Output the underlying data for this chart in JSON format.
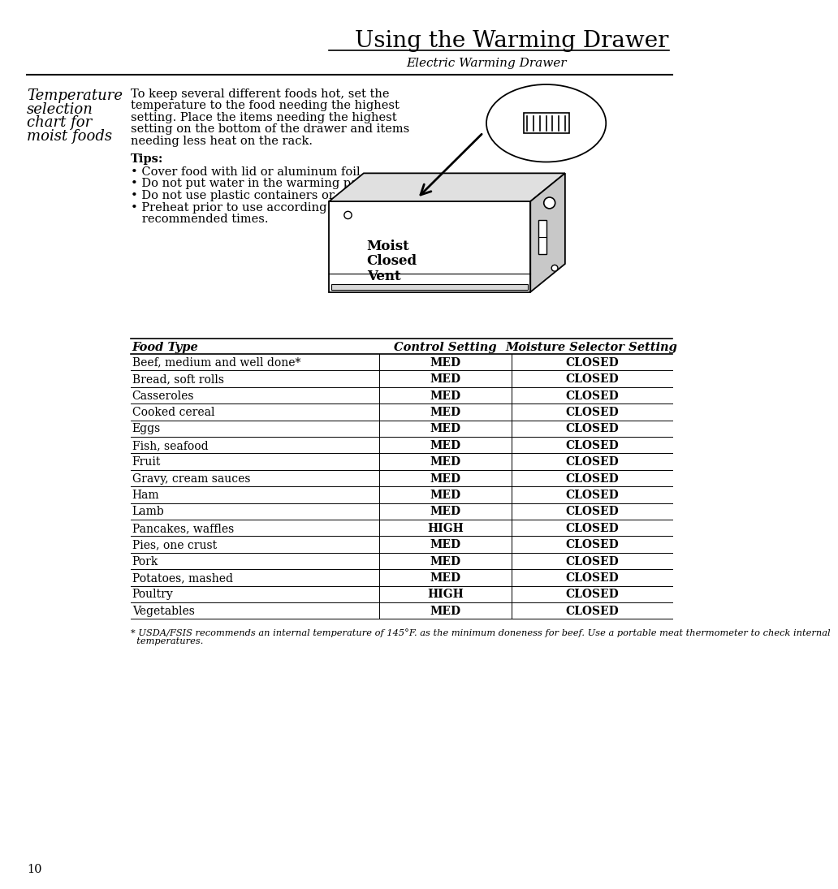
{
  "page_title": "Using the Warming Drawer",
  "page_subtitle": "Electric Warming Drawer",
  "page_number": "10",
  "section_title_lines": [
    "Temperature",
    "selection",
    "chart for",
    "moist foods"
  ],
  "intro_text_lines": [
    "To keep several different foods hot, set the",
    "temperature to the food needing the highest",
    "setting. Place the items needing the highest",
    "setting on the bottom of the drawer and items",
    "needing less heat on the rack."
  ],
  "tips_title": "Tips:",
  "tips": [
    "Cover food with lid or aluminum foil.",
    "Do not put water in the warming pan.",
    "Do not use plastic containers or plastic wrap.",
    "Preheat prior to use according to",
    "   recommended times."
  ],
  "tips_bullets": [
    true,
    true,
    true,
    true,
    false
  ],
  "table_headers": [
    "Food Type",
    "Control Setting",
    "Moisture Selector Setting"
  ],
  "table_data": [
    [
      "Beef, medium and well done*",
      "MED",
      "CLOSED"
    ],
    [
      "Bread, soft rolls",
      "MED",
      "CLOSED"
    ],
    [
      "Casseroles",
      "MED",
      "CLOSED"
    ],
    [
      "Cooked cereal",
      "MED",
      "CLOSED"
    ],
    [
      "Eggs",
      "MED",
      "CLOSED"
    ],
    [
      "Fish, seafood",
      "MED",
      "CLOSED"
    ],
    [
      "Fruit",
      "MED",
      "CLOSED"
    ],
    [
      "Gravy, cream sauces",
      "MED",
      "CLOSED"
    ],
    [
      "Ham",
      "MED",
      "CLOSED"
    ],
    [
      "Lamb",
      "MED",
      "CLOSED"
    ],
    [
      "Pancakes, waffles",
      "HIGH",
      "CLOSED"
    ],
    [
      "Pies, one crust",
      "MED",
      "CLOSED"
    ],
    [
      "Pork",
      "MED",
      "CLOSED"
    ],
    [
      "Potatoes, mashed",
      "MED",
      "CLOSED"
    ],
    [
      "Poultry",
      "HIGH",
      "CLOSED"
    ],
    [
      "Vegetables",
      "MED",
      "CLOSED"
    ]
  ],
  "footnote_line1": "* USDA/FSIS recommends an internal temperature of 145°F. as the minimum doneness for beef. Use a portable meat thermometer to check internal",
  "footnote_line2": "  temperatures.",
  "bg_color": "#ffffff",
  "text_color": "#000000"
}
